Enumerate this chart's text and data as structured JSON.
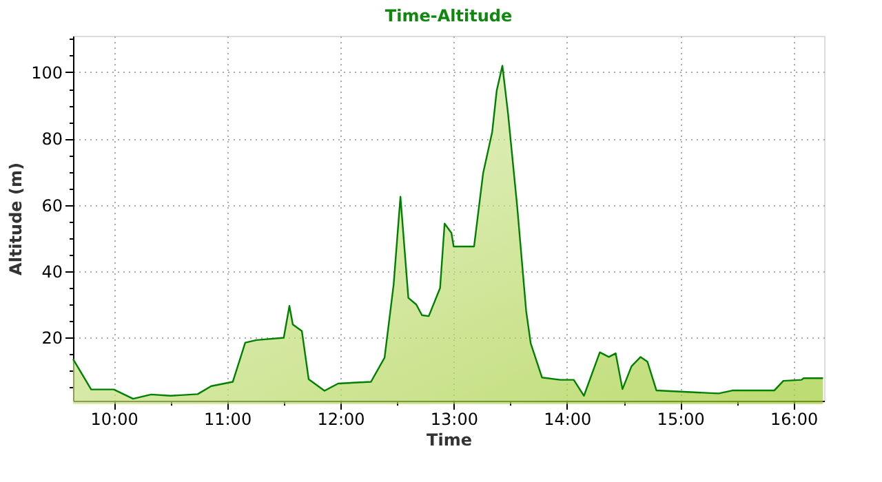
{
  "chart_data": {
    "type": "area",
    "title": "Time-Altitude",
    "xlabel": "Time",
    "ylabel": "Altitude (m)",
    "x": [
      9.64,
      9.8,
      10.0,
      10.17,
      10.33,
      10.5,
      10.74,
      10.86,
      11.05,
      11.16,
      11.26,
      11.5,
      11.55,
      11.58,
      11.66,
      11.72,
      11.86,
      11.98,
      12.27,
      12.39,
      12.47,
      12.53,
      12.6,
      12.67,
      12.72,
      12.78,
      12.88,
      12.92,
      12.98,
      13.0,
      13.18,
      13.26,
      13.34,
      13.38,
      13.43,
      13.48,
      13.56,
      13.64,
      13.68,
      13.78,
      13.94,
      14.06,
      14.15,
      14.29,
      14.37,
      14.43,
      14.49,
      14.57,
      14.65,
      14.71,
      14.79,
      15.34,
      15.46,
      15.83,
      15.91,
      16.07,
      16.09,
      16.26
    ],
    "series": [
      {
        "color": "#008000",
        "values": [
          13.6,
          4.4,
          4.4,
          1.6,
          2.9,
          2.5,
          3.0,
          5.4,
          6.7,
          18.5,
          19.3,
          20,
          29.6,
          24,
          22,
          7.5,
          4,
          6.2,
          6.7,
          14,
          36,
          62.5,
          32,
          30,
          26.8,
          26.5,
          35,
          54.4,
          51.6,
          47.5,
          47.5,
          69.6,
          82,
          94.5,
          102,
          87.5,
          59.8,
          28,
          18.3,
          8,
          7.3,
          7.3,
          2.5,
          15.6,
          14.2,
          15.3,
          4.5,
          11.4,
          14.2,
          12.8,
          4.1,
          3.2,
          4.1,
          4.1,
          7,
          7.3,
          7.8,
          7.8
        ]
      }
    ],
    "xlim": [
      9.64,
      16.27
    ],
    "xticks": [
      {
        "value": 10,
        "label": "10:00"
      },
      {
        "value": 10.5,
        "label": null
      },
      {
        "value": 11,
        "label": "11:00"
      },
      {
        "value": 11.5,
        "label": null
      },
      {
        "value": 12,
        "label": "12:00"
      },
      {
        "value": 12.5,
        "label": null
      },
      {
        "value": 13,
        "label": "13:00"
      },
      {
        "value": 13.5,
        "label": null
      },
      {
        "value": 14,
        "label": "14:00"
      },
      {
        "value": 14.5,
        "label": null
      },
      {
        "value": 15,
        "label": "15:00"
      },
      {
        "value": 15.5,
        "label": null
      },
      {
        "value": 16,
        "label": "16:00"
      }
    ],
    "ylim": [
      1,
      111
    ],
    "yticks": [
      {
        "value": 5,
        "label": null
      },
      {
        "value": 10,
        "label": null
      },
      {
        "value": 15,
        "label": null
      },
      20,
      {
        "value": 25,
        "label": null
      },
      {
        "value": 30,
        "label": null
      },
      {
        "value": 35,
        "label": null
      },
      40,
      {
        "value": 45,
        "label": null
      },
      {
        "value": 50,
        "label": null
      },
      {
        "value": 55,
        "label": null
      },
      60,
      {
        "value": 65,
        "label": null
      },
      {
        "value": 70,
        "label": null
      },
      {
        "value": 75,
        "label": null
      },
      80,
      {
        "value": 85,
        "label": null
      },
      {
        "value": 90,
        "label": null
      },
      {
        "value": 95,
        "label": null
      },
      100,
      {
        "value": 105,
        "label": null
      },
      {
        "value": 110,
        "label": null
      }
    ],
    "grid": true
  }
}
